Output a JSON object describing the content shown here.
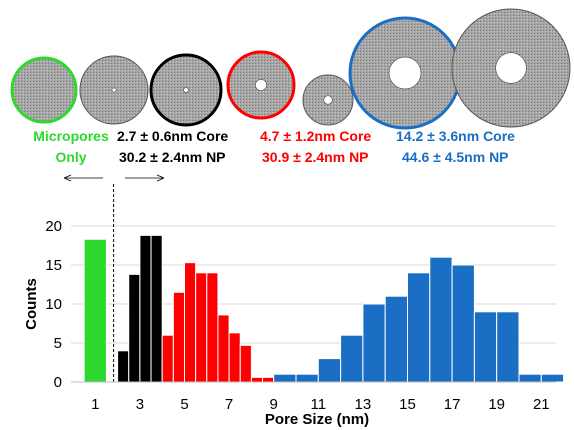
{
  "labels": {
    "micropores_line1": "Micropores",
    "micropores_line2": "Only",
    "black_core": "2.7 ± 0.6nm Core",
    "black_np": "30.2 ± 2.4nm NP",
    "red_core": "4.7 ± 1.2nm Core",
    "red_np": "30.9 ± 2.4nm NP",
    "blue_core": "14.2 ± 3.6nm Core",
    "blue_np": "44.6 ± 4.5nm NP"
  },
  "colors": {
    "green": "#2ed82e",
    "black": "#000000",
    "red": "#ff0000",
    "blue": "#1a6fc4",
    "particle_fill": "#a6a6a6",
    "grid": "#d9d9d9"
  },
  "particles": [
    {
      "outline": "green",
      "hole": 0
    },
    {
      "outline": "none",
      "hole": 0.06
    },
    {
      "outline": "black",
      "hole": 0.07
    },
    {
      "outline": "red",
      "hole": 0.17
    },
    {
      "outline": "none",
      "hole": 0.17
    },
    {
      "outline": "blue",
      "hole": 0.29
    },
    {
      "outline": "none",
      "hole": 0.26
    }
  ],
  "chart_data": {
    "type": "bar",
    "xlabel": "Pore Size (nm)",
    "ylabel": "Counts",
    "xlim": [
      0,
      22.5
    ],
    "ylim": [
      0,
      20
    ],
    "xticks": [
      1,
      3,
      5,
      7,
      9,
      11,
      13,
      15,
      17,
      19,
      21
    ],
    "yticks": [
      0,
      5,
      10,
      15,
      20
    ],
    "grid": "horizontal",
    "threshold_line": 2,
    "series": [
      {
        "color": "green",
        "bins": [
          [
            0.5,
            18.3
          ]
        ]
      },
      {
        "color": "black",
        "bins": [
          [
            2,
            4
          ],
          [
            2.5,
            13.8
          ],
          [
            3,
            18.8
          ],
          [
            3.5,
            18.8
          ],
          [
            4,
            2.6
          ]
        ]
      },
      {
        "color": "red",
        "bins": [
          [
            4,
            6
          ],
          [
            4.5,
            11.5
          ],
          [
            5,
            15.3
          ],
          [
            5.5,
            14
          ],
          [
            6,
            14
          ],
          [
            6.5,
            8.6
          ],
          [
            7,
            6.3
          ],
          [
            7.5,
            4.7
          ],
          [
            8,
            0.6
          ],
          [
            8.5,
            0.6
          ]
        ]
      },
      {
        "color": "blue",
        "bins": [
          [
            9,
            1
          ],
          [
            10,
            1
          ],
          [
            11,
            3
          ],
          [
            12,
            6
          ],
          [
            13,
            10
          ],
          [
            14,
            11
          ],
          [
            15,
            14
          ],
          [
            16,
            16
          ],
          [
            17,
            15
          ],
          [
            18,
            9
          ],
          [
            19,
            9
          ],
          [
            20,
            1
          ],
          [
            21,
            1
          ]
        ]
      }
    ]
  }
}
